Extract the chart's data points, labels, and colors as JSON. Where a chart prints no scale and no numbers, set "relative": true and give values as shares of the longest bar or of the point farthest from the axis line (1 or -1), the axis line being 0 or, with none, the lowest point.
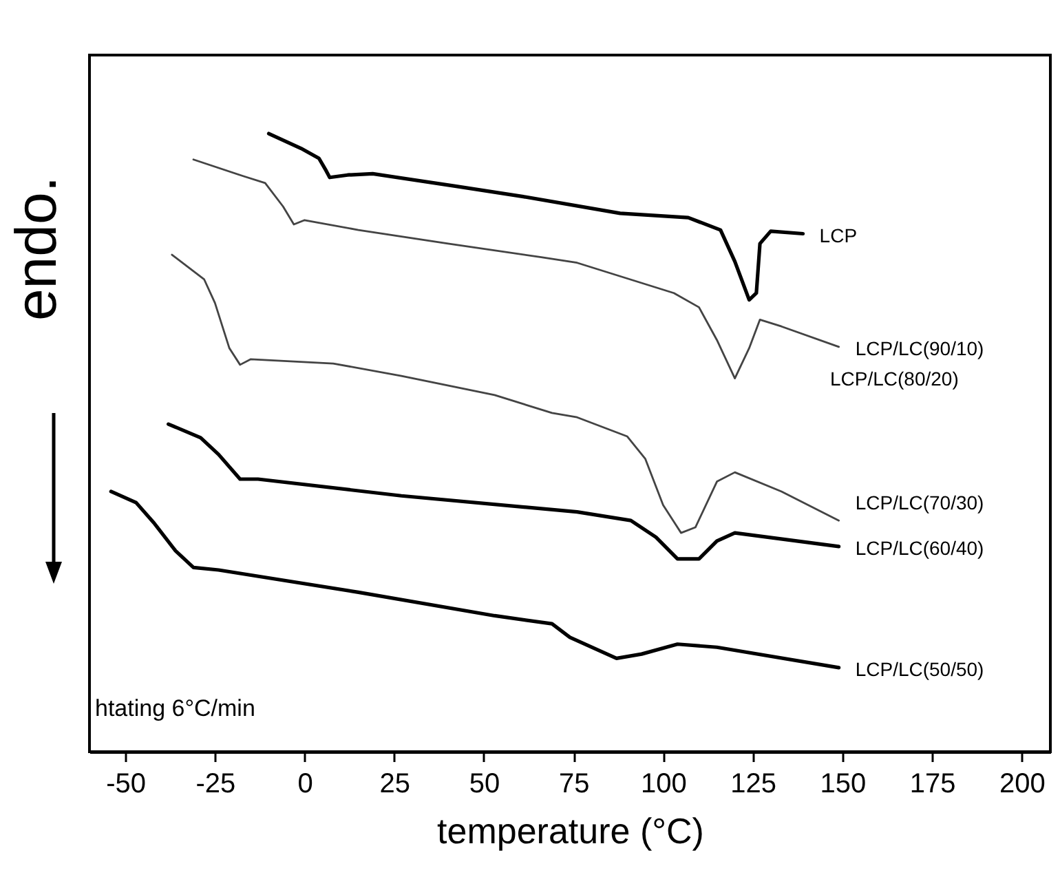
{
  "chart_data": {
    "type": "line",
    "relative": true,
    "xlabel": "temperature (°C)",
    "ylabel": "endo.",
    "xlim": [
      -60,
      208
    ],
    "xticks": [
      -50,
      -25,
      0,
      25,
      50,
      75,
      100,
      125,
      150,
      175,
      200
    ],
    "grid": false,
    "legend": false,
    "annotations": [
      "LCP/LC(80/20)",
      "htating 6°C/min"
    ],
    "series": [
      {
        "name": "LCP",
        "color": "#000000",
        "x": [
          -10,
          -1,
          4,
          6,
          7,
          12,
          19,
          42,
          61,
          88,
          107,
          116,
          120,
          124,
          126,
          127,
          130,
          139
        ],
        "values": [
          1,
          0.976,
          0.96,
          0.94,
          0.929,
          0.933,
          0.935,
          0.915,
          0.898,
          0.871,
          0.864,
          0.844,
          0.793,
          0.731,
          0.742,
          0.822,
          0.842,
          0.838
        ]
      },
      {
        "name": "LCP/LC(90/10)",
        "color": "#444444",
        "x": [
          -31,
          -17,
          -11,
          -6,
          -3,
          0,
          15,
          40,
          66,
          76,
          103,
          110,
          115,
          120,
          124,
          127,
          133,
          149
        ],
        "values": [
          0.958,
          0.931,
          0.92,
          0.882,
          0.853,
          0.86,
          0.844,
          0.822,
          0.8,
          0.791,
          0.742,
          0.719,
          0.666,
          0.604,
          0.653,
          0.699,
          0.688,
          0.655
        ]
      },
      {
        "name": "LCP/LC(70/30)",
        "color": "#444444",
        "x": [
          -37,
          -28,
          -25,
          -21,
          -18,
          -15,
          8,
          27,
          53,
          69,
          76,
          90,
          95,
          100,
          105,
          109,
          115,
          120,
          133,
          149
        ],
        "values": [
          0.804,
          0.764,
          0.726,
          0.653,
          0.626,
          0.635,
          0.628,
          0.608,
          0.577,
          0.548,
          0.541,
          0.51,
          0.474,
          0.399,
          0.354,
          0.363,
          0.437,
          0.452,
          0.421,
          0.374
        ]
      },
      {
        "name": "LCP/LC(60/40)",
        "color": "#000000",
        "x": [
          -38,
          -29,
          -24,
          -18,
          -13,
          27,
          76,
          91,
          98,
          104,
          110,
          115,
          120,
          149
        ],
        "values": [
          0.53,
          0.508,
          0.481,
          0.441,
          0.441,
          0.414,
          0.388,
          0.374,
          0.347,
          0.312,
          0.312,
          0.341,
          0.354,
          0.332
        ]
      },
      {
        "name": "LCP/LC(50/50)",
        "color": "#000000",
        "x": [
          -54,
          -47,
          -42,
          -36,
          -31,
          -24,
          15,
          53,
          69,
          74,
          87,
          94,
          104,
          115,
          149
        ],
        "values": [
          0.421,
          0.403,
          0.37,
          0.325,
          0.298,
          0.294,
          0.258,
          0.22,
          0.207,
          0.185,
          0.151,
          0.158,
          0.174,
          0.169,
          0.136
        ]
      }
    ]
  }
}
